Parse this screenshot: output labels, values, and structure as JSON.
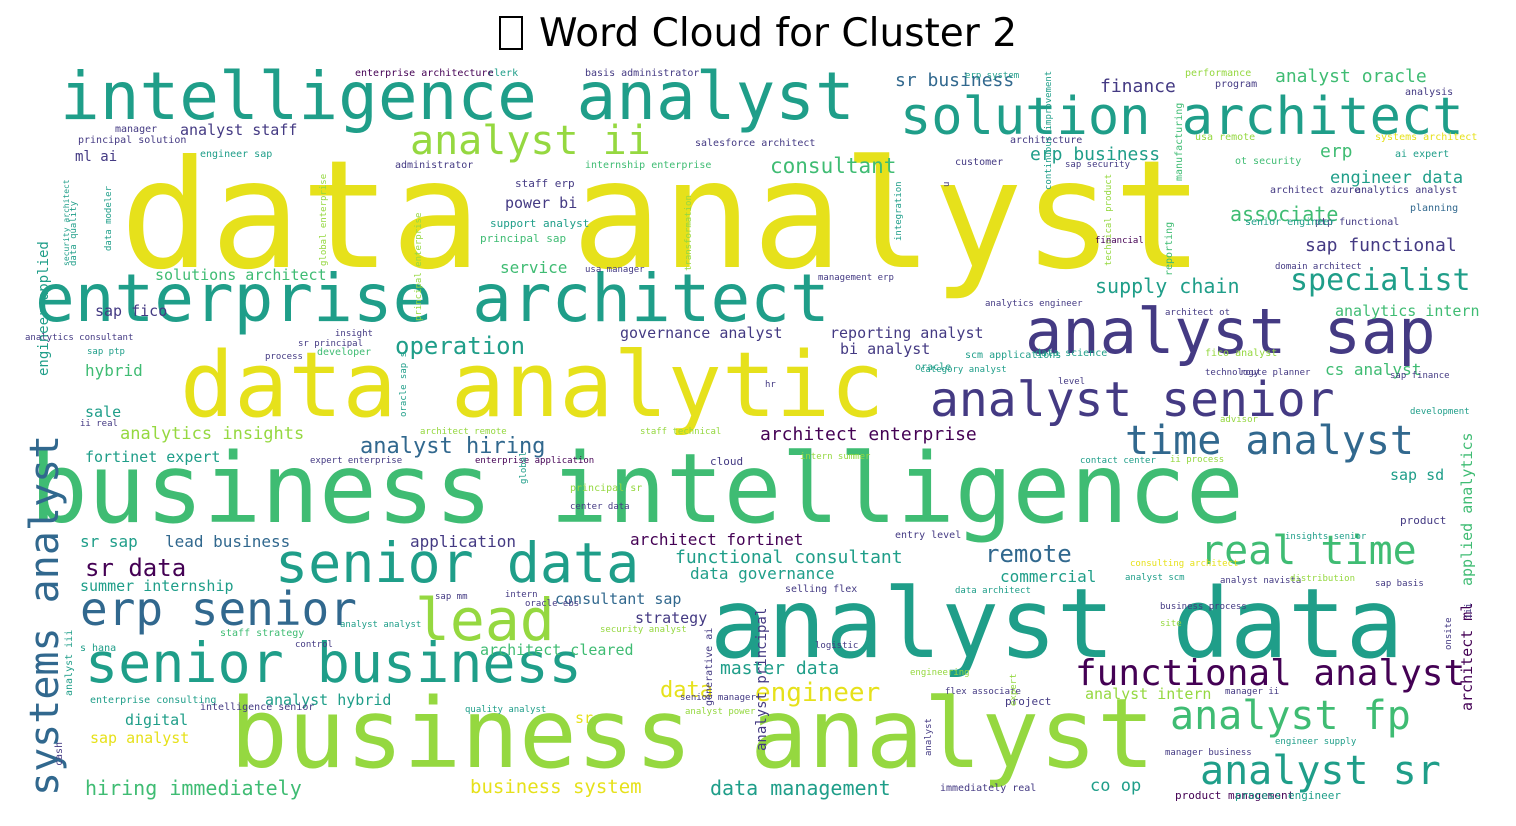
{
  "title": "Word Cloud for Cluster 2",
  "title_icon": "missing-glyph-box",
  "colors": {
    "yellow": "#e6e11b",
    "lime": "#95d840",
    "green": "#3fbc73",
    "teal": "#1f9e89",
    "blue": "#31688e",
    "indigo": "#443a83",
    "purple": "#440154"
  },
  "words": [
    {
      "text": "data analyst",
      "color": "yellow"
    },
    {
      "text": "intelligence analyst",
      "color": "teal"
    },
    {
      "text": "solution architect",
      "color": "teal"
    },
    {
      "text": "enterprise architect",
      "color": "teal"
    },
    {
      "text": "analyst ii",
      "color": "lime"
    },
    {
      "text": "data analytic",
      "color": "yellow"
    },
    {
      "text": "analyst sap",
      "color": "indigo"
    },
    {
      "text": "analyst senior",
      "color": "indigo"
    },
    {
      "text": "business intelligence",
      "color": "green"
    },
    {
      "text": "senior data",
      "color": "teal"
    },
    {
      "text": "analyst data",
      "color": "teal"
    },
    {
      "text": "business analyst",
      "color": "lime"
    },
    {
      "text": "systems analyst",
      "color": "blue"
    },
    {
      "text": "senior business",
      "color": "teal"
    },
    {
      "text": "erp senior",
      "color": "blue"
    },
    {
      "text": "lead",
      "color": "lime"
    },
    {
      "text": "time analyst",
      "color": "blue"
    },
    {
      "text": "real time",
      "color": "green"
    },
    {
      "text": "analyst fp",
      "color": "green"
    },
    {
      "text": "analyst sr",
      "color": "teal"
    },
    {
      "text": "functional analyst",
      "color": "purple"
    },
    {
      "text": "specialist",
      "color": "teal"
    },
    {
      "text": "sr business",
      "color": "blue"
    },
    {
      "text": "finance",
      "color": "indigo"
    },
    {
      "text": "analyst oracle",
      "color": "green"
    },
    {
      "text": "analyst staff",
      "color": "indigo"
    },
    {
      "text": "consultant",
      "color": "green"
    },
    {
      "text": "erp business",
      "color": "teal"
    },
    {
      "text": "erp",
      "color": "green"
    },
    {
      "text": "engineer data",
      "color": "teal"
    },
    {
      "text": "associate",
      "color": "green"
    },
    {
      "text": "sap functional",
      "color": "indigo"
    },
    {
      "text": "supply chain",
      "color": "teal"
    },
    {
      "text": "power bi",
      "color": "indigo"
    },
    {
      "text": "service",
      "color": "green"
    },
    {
      "text": "solutions architect",
      "color": "green"
    },
    {
      "text": "sap fico",
      "color": "indigo"
    },
    {
      "text": "operation",
      "color": "teal"
    },
    {
      "text": "governance analyst",
      "color": "indigo"
    },
    {
      "text": "reporting analyst",
      "color": "indigo"
    },
    {
      "text": "bi analyst",
      "color": "indigo"
    },
    {
      "text": "hybrid",
      "color": "green"
    },
    {
      "text": "sale",
      "color": "teal"
    },
    {
      "text": "analytics insights",
      "color": "lime"
    },
    {
      "text": "analyst hiring",
      "color": "blue"
    },
    {
      "text": "architect enterprise",
      "color": "purple"
    },
    {
      "text": "fortinet expert",
      "color": "teal"
    },
    {
      "text": "cs analyst",
      "color": "green"
    },
    {
      "text": "analytics intern",
      "color": "green"
    },
    {
      "text": "sr sap",
      "color": "teal"
    },
    {
      "text": "lead business",
      "color": "blue"
    },
    {
      "text": "application",
      "color": "indigo"
    },
    {
      "text": "architect fortinet",
      "color": "purple"
    },
    {
      "text": "functional consultant",
      "color": "teal"
    },
    {
      "text": "remote",
      "color": "blue"
    },
    {
      "text": "sr data",
      "color": "purple"
    },
    {
      "text": "data governance",
      "color": "teal"
    },
    {
      "text": "commercial",
      "color": "teal"
    },
    {
      "text": "summer internship",
      "color": "teal"
    },
    {
      "text": "consultant sap",
      "color": "blue"
    },
    {
      "text": "strategy",
      "color": "indigo"
    },
    {
      "text": "architect cleared",
      "color": "green"
    },
    {
      "text": "master data",
      "color": "teal"
    },
    {
      "text": "data",
      "color": "yellow"
    },
    {
      "text": "engineer",
      "color": "yellow"
    },
    {
      "text": "sr",
      "color": "yellow"
    },
    {
      "text": "analyst hybrid",
      "color": "teal"
    },
    {
      "text": "digital",
      "color": "teal"
    },
    {
      "text": "sap analyst",
      "color": "yellow"
    },
    {
      "text": "hiring immediately",
      "color": "green"
    },
    {
      "text": "business system",
      "color": "yellow"
    },
    {
      "text": "data management",
      "color": "teal"
    },
    {
      "text": "co op",
      "color": "teal"
    },
    {
      "text": "ml ai",
      "color": "indigo"
    },
    {
      "text": "engineer applied",
      "color": "teal"
    },
    {
      "text": "sap sd",
      "color": "teal"
    },
    {
      "text": "applied analytics",
      "color": "green"
    },
    {
      "text": "architect ml",
      "color": "purple"
    },
    {
      "text": "product",
      "color": "indigo"
    },
    {
      "text": "product management",
      "color": "purple"
    },
    {
      "text": "process engineer",
      "color": "teal"
    },
    {
      "text": "analyst intern",
      "color": "lime"
    },
    {
      "text": "project",
      "color": "indigo"
    },
    {
      "text": "cloud",
      "color": "indigo"
    },
    {
      "text": "principal sap",
      "color": "green"
    },
    {
      "text": "support analyst",
      "color": "teal"
    },
    {
      "text": "staff erp",
      "color": "indigo"
    },
    {
      "text": "oracle",
      "color": "teal"
    },
    {
      "text": "scm applications",
      "color": "teal"
    },
    {
      "text": "reporting",
      "color": "green"
    },
    {
      "text": "manufacturing",
      "color": "green"
    },
    {
      "text": "usa remote",
      "color": "lime"
    },
    {
      "text": "ot security",
      "color": "green"
    },
    {
      "text": "ai expert",
      "color": "teal"
    },
    {
      "text": "planning",
      "color": "blue"
    },
    {
      "text": "ptp functional",
      "color": "indigo"
    },
    {
      "text": "senior engineer",
      "color": "teal"
    },
    {
      "text": "clerk",
      "color": "teal"
    },
    {
      "text": "basis administrator",
      "color": "indigo"
    },
    {
      "text": "enterprise architecture",
      "color": "purple"
    },
    {
      "text": "performance",
      "color": "lime"
    },
    {
      "text": "program",
      "color": "indigo"
    },
    {
      "text": "analysis",
      "color": "indigo"
    },
    {
      "text": "salesforce architect",
      "color": "indigo"
    },
    {
      "text": "engineer sap",
      "color": "teal"
    },
    {
      "text": "customer",
      "color": "indigo"
    },
    {
      "text": "manager",
      "color": "indigo"
    },
    {
      "text": "principal solution",
      "color": "indigo"
    },
    {
      "text": "administrator",
      "color": "indigo"
    },
    {
      "text": "internship enterprise",
      "color": "green"
    },
    {
      "text": "architecture",
      "color": "indigo"
    },
    {
      "text": "systems architect",
      "color": "yellow"
    },
    {
      "text": "architect azure",
      "color": "indigo"
    },
    {
      "text": "analytics analyst",
      "color": "indigo"
    },
    {
      "text": "erp system",
      "color": "teal"
    },
    {
      "text": "data quality",
      "color": "teal"
    },
    {
      "text": "data modeler",
      "color": "teal"
    },
    {
      "text": "security architect",
      "color": "teal"
    },
    {
      "text": "global enterprise",
      "color": "lime"
    },
    {
      "text": "principal enterprise",
      "color": "lime"
    },
    {
      "text": "transformation",
      "color": "lime"
    },
    {
      "text": "integration",
      "color": "teal"
    },
    {
      "text": "sap security",
      "color": "indigo"
    },
    {
      "text": "technical product",
      "color": "lime"
    },
    {
      "text": "financial",
      "color": "purple"
    },
    {
      "text": "usa manager",
      "color": "indigo"
    },
    {
      "text": "management erp",
      "color": "indigo"
    },
    {
      "text": "domain architect",
      "color": "indigo"
    },
    {
      "text": "analytics engineer",
      "color": "indigo"
    },
    {
      "text": "architect ot",
      "color": "indigo"
    },
    {
      "text": "insight",
      "color": "indigo"
    },
    {
      "text": "developer",
      "color": "green"
    },
    {
      "text": "data science",
      "color": "teal"
    },
    {
      "text": "fico analyst",
      "color": "lime"
    },
    {
      "text": "sap ptp",
      "color": "teal"
    },
    {
      "text": "analytics consultant",
      "color": "indigo"
    },
    {
      "text": "sr principal",
      "color": "indigo"
    },
    {
      "text": "hr",
      "color": "indigo"
    },
    {
      "text": "level",
      "color": "indigo"
    },
    {
      "text": "sap finance",
      "color": "indigo"
    },
    {
      "text": "route planner",
      "color": "indigo"
    },
    {
      "text": "development",
      "color": "teal"
    },
    {
      "text": "technology",
      "color": "indigo"
    },
    {
      "text": "architect remote",
      "color": "lime"
    },
    {
      "text": "staff technical",
      "color": "lime"
    },
    {
      "text": "advisor",
      "color": "lime"
    },
    {
      "text": "ii process",
      "color": "lime"
    },
    {
      "text": "contact center",
      "color": "teal"
    },
    {
      "text": "expert enterprise",
      "color": "indigo"
    },
    {
      "text": "enterprise application",
      "color": "purple"
    },
    {
      "text": "intern summer",
      "color": "lime"
    },
    {
      "text": "principal sr",
      "color": "lime"
    },
    {
      "text": "center data",
      "color": "indigo"
    },
    {
      "text": "entry level",
      "color": "indigo"
    },
    {
      "text": "consulting architect",
      "color": "yellow"
    },
    {
      "text": "analyst scm",
      "color": "teal"
    },
    {
      "text": "analyst navista",
      "color": "indigo"
    },
    {
      "text": "selling flex",
      "color": "indigo"
    },
    {
      "text": "data architect",
      "color": "teal"
    },
    {
      "text": "business process",
      "color": "indigo"
    },
    {
      "text": "sap basis",
      "color": "indigo"
    },
    {
      "text": "insights senior",
      "color": "teal"
    },
    {
      "text": "distribution",
      "color": "lime"
    },
    {
      "text": "site",
      "color": "lime"
    },
    {
      "text": "sap mm",
      "color": "indigo"
    },
    {
      "text": "analyst analyst",
      "color": "teal"
    },
    {
      "text": "security analyst",
      "color": "lime"
    },
    {
      "text": "control",
      "color": "indigo"
    },
    {
      "text": "s hana",
      "color": "teal"
    },
    {
      "text": "staff strategy",
      "color": "green"
    },
    {
      "text": "enterprise consulting",
      "color": "teal"
    },
    {
      "text": "intelligence senior",
      "color": "indigo"
    },
    {
      "text": "quality analyst",
      "color": "teal"
    },
    {
      "text": "senior manager",
      "color": "indigo"
    },
    {
      "text": "analyst power",
      "color": "lime"
    },
    {
      "text": "engineering",
      "color": "lime"
    },
    {
      "text": "flex associate",
      "color": "indigo"
    },
    {
      "text": "manager ii",
      "color": "indigo"
    },
    {
      "text": "engineer supply",
      "color": "teal"
    },
    {
      "text": "manager business",
      "color": "indigo"
    },
    {
      "text": "immediately real",
      "color": "indigo"
    },
    {
      "text": "analyst iii",
      "color": "teal"
    },
    {
      "text": "cash",
      "color": "indigo"
    },
    {
      "text": "analyst principal",
      "color": "indigo"
    },
    {
      "text": "analyst",
      "color": "indigo"
    },
    {
      "text": "expert",
      "color": "lime"
    },
    {
      "text": "generative ai",
      "color": "indigo"
    },
    {
      "text": "global",
      "color": "teal"
    },
    {
      "text": "intern",
      "color": "indigo"
    },
    {
      "text": "logistic",
      "color": "indigo"
    },
    {
      "text": "onsite",
      "color": "indigo"
    },
    {
      "text": "iii",
      "color": "indigo"
    },
    {
      "text": "u",
      "color": "indigo"
    },
    {
      "text": "continuous improvement",
      "color": "teal"
    },
    {
      "text": "category analyst",
      "color": "teal"
    },
    {
      "text": "oracle ebs",
      "color": "indigo"
    },
    {
      "text": "ii real",
      "color": "indigo"
    },
    {
      "text": "oracle sap s",
      "color": "teal"
    },
    {
      "text": "process",
      "color": "indigo"
    },
    {
      "text": "support",
      "color": "lime"
    },
    {
      "text": "jr",
      "color": "indigo"
    },
    {
      "text": "d",
      "color": "lime"
    }
  ]
}
